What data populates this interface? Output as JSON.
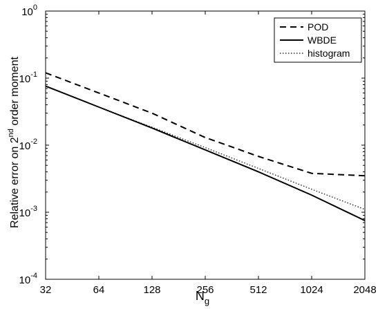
{
  "chart_data": {
    "type": "line",
    "title": "",
    "xlabel": "N",
    "xlabel_sub": "g",
    "ylabel_parts": [
      "Relative error on 2",
      "nd",
      " order moment"
    ],
    "x_scale": "log2",
    "y_scale": "log10",
    "xlim": [
      32,
      2048
    ],
    "ylim": [
      0.0001,
      1
    ],
    "x_ticks": [
      {
        "value": 32,
        "label": "32"
      },
      {
        "value": 64,
        "label": "64"
      },
      {
        "value": 128,
        "label": "128"
      },
      {
        "value": 256,
        "label": "256"
      },
      {
        "value": 512,
        "label": "512"
      },
      {
        "value": 1024,
        "label": "1024"
      },
      {
        "value": 2048,
        "label": "2048"
      }
    ],
    "y_ticks": [
      {
        "value": 0.0001,
        "base": "10",
        "exp": "-4"
      },
      {
        "value": 0.001,
        "base": "10",
        "exp": "-3"
      },
      {
        "value": 0.01,
        "base": "10",
        "exp": "-2"
      },
      {
        "value": 0.1,
        "base": "10",
        "exp": "-1"
      },
      {
        "value": 1,
        "base": "10",
        "exp": "0"
      }
    ],
    "x": [
      32,
      64,
      128,
      256,
      512,
      1024,
      2048
    ],
    "series": [
      {
        "name": "POD",
        "dash": "dashed",
        "values": [
          0.12,
          0.06,
          0.03,
          0.013,
          0.0068,
          0.0038,
          0.0035
        ]
      },
      {
        "name": "WBDE",
        "dash": "solid",
        "values": [
          0.076,
          0.037,
          0.018,
          0.0085,
          0.004,
          0.0018,
          0.00075
        ]
      },
      {
        "name": "histogram",
        "dash": "dotted",
        "values": [
          0.076,
          0.037,
          0.0185,
          0.0092,
          0.0045,
          0.0022,
          0.0011
        ]
      }
    ],
    "grid": false,
    "legend_position": "top-right"
  }
}
